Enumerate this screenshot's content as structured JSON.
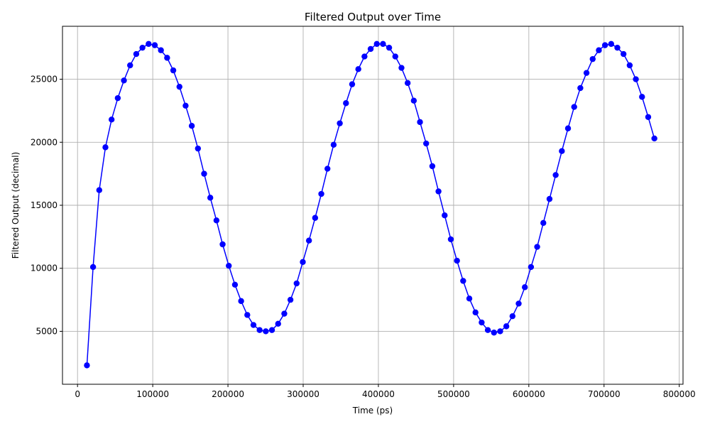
{
  "chart_data": {
    "type": "line",
    "title": "Filtered Output over Time",
    "xlabel": "Time (ps)",
    "ylabel": "Filtered Output (decimal)",
    "xlim": [
      -20000,
      805000
    ],
    "ylim": [
      800,
      29200
    ],
    "x_ticks": [
      0,
      100000,
      200000,
      300000,
      400000,
      500000,
      600000,
      700000,
      800000
    ],
    "y_ticks": [
      5000,
      10000,
      15000,
      20000,
      25000
    ],
    "grid": true,
    "line_color": "#0000ff",
    "marker_color": "#0000ff",
    "marker": "circle",
    "series": [
      {
        "x": [
          12500,
          20700,
          28900,
          37100,
          45300,
          53500,
          61700,
          69900,
          78100,
          86300,
          94500,
          102700,
          110900,
          119100,
          127300,
          135500,
          143700,
          151900,
          160100,
          168300,
          176500,
          184700,
          192900,
          201100,
          209300,
          217500,
          225700,
          233900,
          242100,
          250300,
          258500,
          266700,
          274900,
          283100,
          291300,
          299500,
          307700,
          315900,
          324100,
          332300,
          340500,
          348700,
          356900,
          365100,
          373300,
          381500,
          389700,
          397900,
          406100,
          414300,
          422500,
          430700,
          438900,
          447100,
          455300,
          463500,
          471700,
          479900,
          488100,
          496300,
          504500,
          512700,
          520900,
          529100,
          537300,
          545500,
          553700,
          561900,
          570100,
          578300,
          586500,
          594700,
          602900,
          611100,
          619300,
          627500,
          635700,
          643900,
          652100,
          660300,
          668500,
          676700,
          684900,
          693100,
          701300,
          709500,
          717700,
          725900,
          734100,
          742300,
          750500,
          758700,
          766900
        ],
        "y": [
          2300,
          10100,
          16200,
          19600,
          21800,
          23500,
          24900,
          26100,
          27000,
          27500,
          27800,
          27700,
          27300,
          26700,
          25700,
          24400,
          22900,
          21300,
          19500,
          17500,
          15600,
          13800,
          11900,
          10200,
          8700,
          7400,
          6300,
          5500,
          5100,
          5000,
          5100,
          5600,
          6400,
          7500,
          8800,
          10500,
          12200,
          14000,
          15900,
          17900,
          19800,
          21500,
          23100,
          24600,
          25800,
          26800,
          27400,
          27800,
          27800,
          27500,
          26800,
          25900,
          24700,
          23300,
          21600,
          19900,
          18100,
          16100,
          14200,
          12300,
          10600,
          9000,
          7600,
          6500,
          5700,
          5100,
          4900,
          5000,
          5400,
          6200,
          7200,
          8500,
          10100,
          11700,
          13600,
          15500,
          17400,
          19300,
          21100,
          22800,
          24300,
          25500,
          26600,
          27300,
          27700,
          27800,
          27500,
          27000,
          26100,
          25000,
          23600,
          22000,
          20300
        ]
      }
    ]
  }
}
